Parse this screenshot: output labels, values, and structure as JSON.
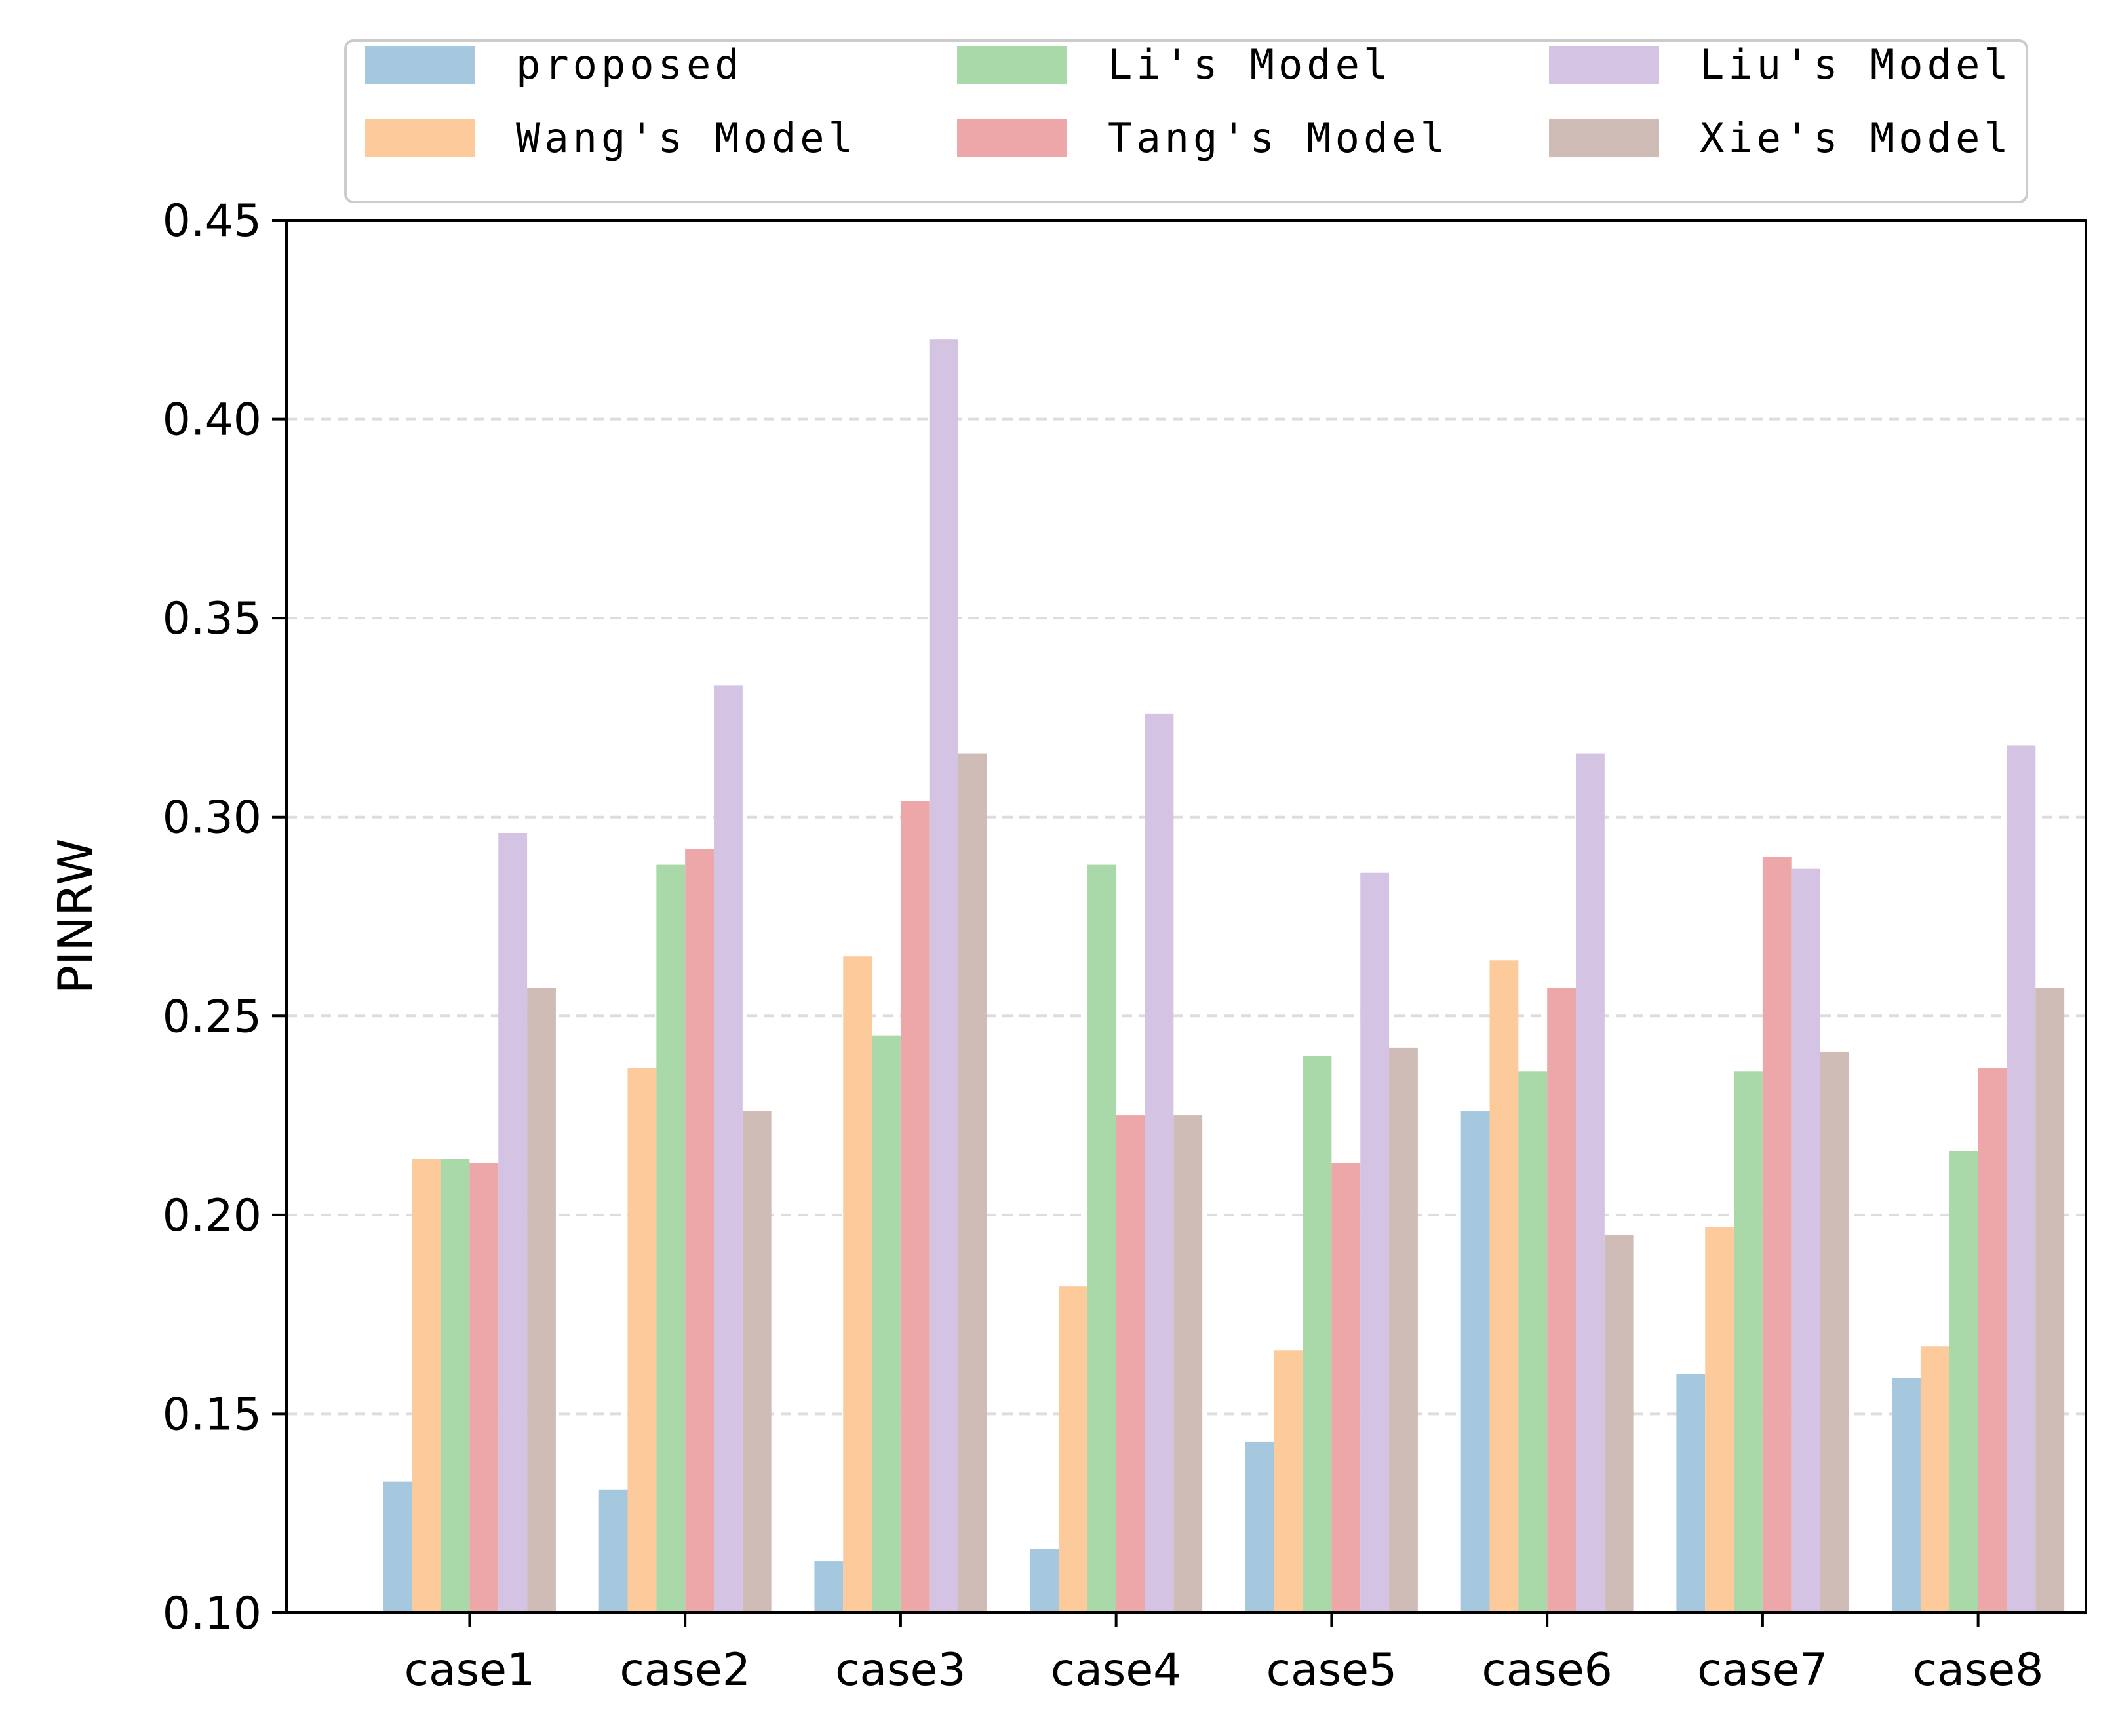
{
  "chart_data": {
    "type": "bar",
    "title": "",
    "xlabel": "",
    "ylabel": "PINRW",
    "ylim": [
      0.1,
      0.45
    ],
    "yticks": [
      "0.10",
      "0.15",
      "0.20",
      "0.25",
      "0.30",
      "0.35",
      "0.40",
      "0.45"
    ],
    "grid": "horizontal dashed",
    "legend_placement": "top",
    "categories": [
      "case1",
      "case2",
      "case3",
      "case4",
      "case5",
      "case6",
      "case7",
      "case8"
    ],
    "series": [
      {
        "name": "proposed",
        "color": "#a6c8df",
        "values": [
          0.133,
          0.131,
          0.113,
          0.116,
          0.143,
          0.226,
          0.16,
          0.159
        ]
      },
      {
        "name": "Wang's Model",
        "color": "#fdca9c",
        "values": [
          0.214,
          0.237,
          0.265,
          0.182,
          0.166,
          0.264,
          0.197,
          0.167
        ]
      },
      {
        "name": "Li's Model",
        "color": "#a9d9a9",
        "values": [
          0.214,
          0.288,
          0.245,
          0.288,
          0.24,
          0.236,
          0.236,
          0.216
        ]
      },
      {
        "name": "Tang's Model",
        "color": "#eda7a8",
        "values": [
          0.213,
          0.292,
          0.304,
          0.225,
          0.213,
          0.257,
          0.29,
          0.237
        ]
      },
      {
        "name": "Liu's Model",
        "color": "#d5c3e3",
        "values": [
          0.296,
          0.333,
          0.42,
          0.326,
          0.286,
          0.316,
          0.287,
          0.318
        ]
      },
      {
        "name": "Xie's Model",
        "color": "#d0bcb6",
        "values": [
          0.257,
          0.226,
          0.316,
          0.225,
          0.242,
          0.195,
          0.241,
          0.257
        ]
      }
    ]
  }
}
